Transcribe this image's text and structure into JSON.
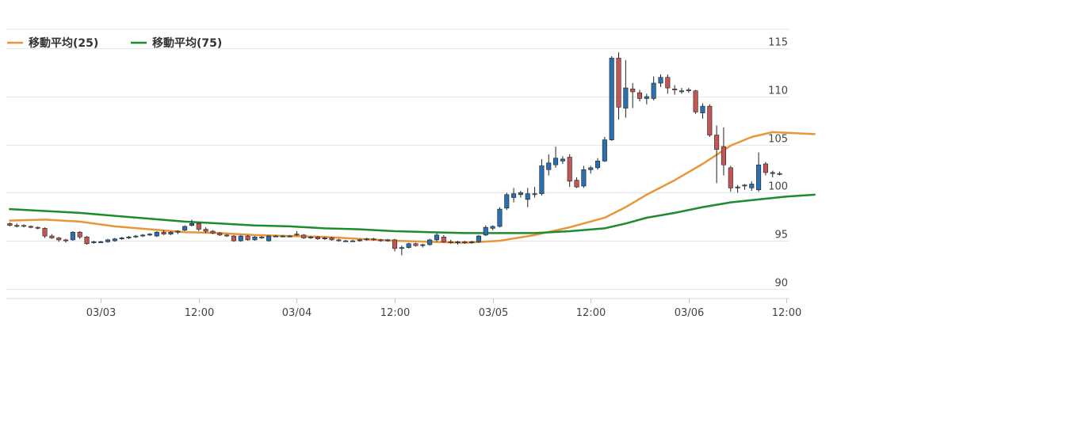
{
  "legend": [
    {
      "label": "移動平均(25)",
      "color": "#e8963a"
    },
    {
      "label": "移動平均(75)",
      "color": "#1e8c2e"
    }
  ],
  "chart_data": {
    "type": "candlestick",
    "title": "",
    "xlabel": "",
    "ylabel": "",
    "ylim": [
      89,
      117
    ],
    "y_ticks": [
      90,
      95,
      100,
      105,
      110,
      115
    ],
    "y_axis_side": "right",
    "grid": {
      "horizontal": true,
      "vertical": false
    },
    "legend_position": "top-left",
    "colors": {
      "up": "#2a6fb0",
      "down": "#c45656",
      "wick": "#222222",
      "grid": "#e6e6e6"
    },
    "x_ticks": [
      {
        "label": "03/03",
        "index": 13
      },
      {
        "label": "12:00",
        "index": 27
      },
      {
        "label": "03/04",
        "index": 41
      },
      {
        "label": "12:00",
        "index": 55
      },
      {
        "label": "03/05",
        "index": 69
      },
      {
        "label": "12:00",
        "index": 83
      },
      {
        "label": "03/06",
        "index": 97
      },
      {
        "label": "12:00",
        "index": 111
      }
    ],
    "candles": [
      [
        96.8,
        96.9,
        96.5,
        96.6
      ],
      [
        96.6,
        96.8,
        96.4,
        96.6
      ],
      [
        96.6,
        96.7,
        96.4,
        96.5
      ],
      [
        96.5,
        96.6,
        96.3,
        96.4
      ],
      [
        96.4,
        96.5,
        96.2,
        96.3
      ],
      [
        96.3,
        96.4,
        95.3,
        95.5
      ],
      [
        95.5,
        95.7,
        95.2,
        95.3
      ],
      [
        95.3,
        95.4,
        94.9,
        95.1
      ],
      [
        95.1,
        95.2,
        94.8,
        95.0
      ],
      [
        95.1,
        96.0,
        95.0,
        95.9
      ],
      [
        95.9,
        96.0,
        95.2,
        95.4
      ],
      [
        95.4,
        95.5,
        94.6,
        94.7
      ],
      [
        94.8,
        95.0,
        94.7,
        94.9
      ],
      [
        94.9,
        95.0,
        94.8,
        94.9
      ],
      [
        94.9,
        95.2,
        94.8,
        95.1
      ],
      [
        95.0,
        95.3,
        94.9,
        95.2
      ],
      [
        95.2,
        95.4,
        95.1,
        95.3
      ],
      [
        95.3,
        95.5,
        95.2,
        95.4
      ],
      [
        95.4,
        95.6,
        95.3,
        95.5
      ],
      [
        95.5,
        95.7,
        95.4,
        95.6
      ],
      [
        95.6,
        95.8,
        95.5,
        95.7
      ],
      [
        95.5,
        96.0,
        95.4,
        95.9
      ],
      [
        95.9,
        96.1,
        95.6,
        95.7
      ],
      [
        95.7,
        96.0,
        95.6,
        95.9
      ],
      [
        95.9,
        96.1,
        95.7,
        96.0
      ],
      [
        96.1,
        96.6,
        96.0,
        96.5
      ],
      [
        96.6,
        97.2,
        96.5,
        96.8
      ],
      [
        96.8,
        96.9,
        96.0,
        96.2
      ],
      [
        96.2,
        96.4,
        95.8,
        96.0
      ],
      [
        96.0,
        96.1,
        95.7,
        95.8
      ],
      [
        95.8,
        95.9,
        95.5,
        95.6
      ],
      [
        95.6,
        95.7,
        95.4,
        95.5
      ],
      [
        95.5,
        95.6,
        94.9,
        95.0
      ],
      [
        95.0,
        95.6,
        94.9,
        95.5
      ],
      [
        95.5,
        95.6,
        95.0,
        95.1
      ],
      [
        95.1,
        95.5,
        95.0,
        95.4
      ],
      [
        95.4,
        95.5,
        95.2,
        95.3
      ],
      [
        95.0,
        95.6,
        94.9,
        95.5
      ],
      [
        95.5,
        95.6,
        95.4,
        95.5
      ],
      [
        95.5,
        95.6,
        95.4,
        95.5
      ],
      [
        95.5,
        95.6,
        95.4,
        95.5
      ],
      [
        95.7,
        96.0,
        95.5,
        95.6
      ],
      [
        95.6,
        95.7,
        95.2,
        95.3
      ],
      [
        95.3,
        95.5,
        95.2,
        95.4
      ],
      [
        95.4,
        95.5,
        95.1,
        95.2
      ],
      [
        95.2,
        95.4,
        95.1,
        95.3
      ],
      [
        95.3,
        95.4,
        95.0,
        95.1
      ],
      [
        95.1,
        95.2,
        94.9,
        95.0
      ],
      [
        95.0,
        95.1,
        94.9,
        95.0
      ],
      [
        95.0,
        95.1,
        94.9,
        95.0
      ],
      [
        95.0,
        95.2,
        94.9,
        95.1
      ],
      [
        95.1,
        95.3,
        95.0,
        95.2
      ],
      [
        95.2,
        95.3,
        95.0,
        95.1
      ],
      [
        95.1,
        95.2,
        94.9,
        95.0
      ],
      [
        95.0,
        95.2,
        94.9,
        95.1
      ],
      [
        95.1,
        95.2,
        93.9,
        94.2
      ],
      [
        94.2,
        94.5,
        93.5,
        94.3
      ],
      [
        94.3,
        94.8,
        94.2,
        94.7
      ],
      [
        94.7,
        94.8,
        94.4,
        94.5
      ],
      [
        94.5,
        94.7,
        94.3,
        94.6
      ],
      [
        94.6,
        95.2,
        94.5,
        95.1
      ],
      [
        95.1,
        95.8,
        94.9,
        95.6
      ],
      [
        95.4,
        95.6,
        94.8,
        94.9
      ],
      [
        94.9,
        95.1,
        94.7,
        94.8
      ],
      [
        94.8,
        95.0,
        94.6,
        94.9
      ],
      [
        94.9,
        95.0,
        94.7,
        94.8
      ],
      [
        94.8,
        95.0,
        94.7,
        94.9
      ],
      [
        94.9,
        95.6,
        94.8,
        95.5
      ],
      [
        95.6,
        96.6,
        95.5,
        96.4
      ],
      [
        96.3,
        96.6,
        96.1,
        96.5
      ],
      [
        96.5,
        98.5,
        96.4,
        98.3
      ],
      [
        98.4,
        100.0,
        98.2,
        99.8
      ],
      [
        99.5,
        100.5,
        99.0,
        99.9
      ],
      [
        99.8,
        100.2,
        99.5,
        100.0
      ],
      [
        99.3,
        100.5,
        98.5,
        99.9
      ],
      [
        99.8,
        100.6,
        99.5,
        99.9
      ],
      [
        99.9,
        103.5,
        99.7,
        102.8
      ],
      [
        102.4,
        104.0,
        101.8,
        103.1
      ],
      [
        102.9,
        104.8,
        102.6,
        103.6
      ],
      [
        103.3,
        103.8,
        103.0,
        103.5
      ],
      [
        103.7,
        104.0,
        100.6,
        101.2
      ],
      [
        101.3,
        101.6,
        100.5,
        100.6
      ],
      [
        100.7,
        102.8,
        100.5,
        102.4
      ],
      [
        102.4,
        102.8,
        102.0,
        102.6
      ],
      [
        102.6,
        103.6,
        102.4,
        103.3
      ],
      [
        103.3,
        105.8,
        103.2,
        105.5
      ],
      [
        105.5,
        114.2,
        105.4,
        114.0
      ],
      [
        114.0,
        114.6,
        107.6,
        108.9
      ],
      [
        108.8,
        113.8,
        107.8,
        110.9
      ],
      [
        110.8,
        111.4,
        108.8,
        110.5
      ],
      [
        110.4,
        110.7,
        109.5,
        109.8
      ],
      [
        109.8,
        110.3,
        109.2,
        110.0
      ],
      [
        109.8,
        112.1,
        109.6,
        111.4
      ],
      [
        111.4,
        112.3,
        111.0,
        112.0
      ],
      [
        112.0,
        112.3,
        110.3,
        110.9
      ],
      [
        110.8,
        111.2,
        110.2,
        110.7
      ],
      [
        110.6,
        110.9,
        110.3,
        110.6
      ],
      [
        110.7,
        110.9,
        110.4,
        110.6
      ],
      [
        110.6,
        110.7,
        108.2,
        108.4
      ],
      [
        108.3,
        109.3,
        107.7,
        109.0
      ],
      [
        109.0,
        109.2,
        105.8,
        106.0
      ],
      [
        106.0,
        107.0,
        101.0,
        104.5
      ],
      [
        104.8,
        106.8,
        101.8,
        102.9
      ],
      [
        102.6,
        102.8,
        100.1,
        100.5
      ],
      [
        100.5,
        100.8,
        100.0,
        100.6
      ],
      [
        100.7,
        100.9,
        100.3,
        100.8
      ],
      [
        100.5,
        101.2,
        100.2,
        100.9
      ],
      [
        100.3,
        104.2,
        100.1,
        102.9
      ],
      [
        103.0,
        103.2,
        101.8,
        102.1
      ],
      [
        102.0,
        102.3,
        101.6,
        102.1
      ],
      [
        102.0,
        102.2,
        101.8,
        102.0
      ]
    ],
    "series": [
      {
        "name": "移動平均(25)",
        "color": "#e8963a",
        "points": [
          [
            0,
            97.1
          ],
          [
            5,
            97.2
          ],
          [
            10,
            97.0
          ],
          [
            15,
            96.5
          ],
          [
            20,
            96.2
          ],
          [
            25,
            95.9
          ],
          [
            30,
            95.8
          ],
          [
            35,
            95.6
          ],
          [
            40,
            95.5
          ],
          [
            45,
            95.4
          ],
          [
            50,
            95.2
          ],
          [
            55,
            95.0
          ],
          [
            60,
            94.9
          ],
          [
            65,
            94.8
          ],
          [
            70,
            95.0
          ],
          [
            75,
            95.6
          ],
          [
            80,
            96.4
          ],
          [
            85,
            97.4
          ],
          [
            88,
            98.5
          ],
          [
            91,
            99.8
          ],
          [
            95,
            101.3
          ],
          [
            99,
            103.0
          ],
          [
            103,
            104.9
          ],
          [
            106,
            105.8
          ],
          [
            109,
            106.3
          ],
          [
            112,
            106.2
          ],
          [
            115,
            106.1
          ]
        ]
      },
      {
        "name": "移動平均(75)",
        "color": "#1e8c2e",
        "points": [
          [
            0,
            98.3
          ],
          [
            5,
            98.1
          ],
          [
            10,
            97.9
          ],
          [
            15,
            97.6
          ],
          [
            20,
            97.3
          ],
          [
            25,
            97.0
          ],
          [
            30,
            96.8
          ],
          [
            35,
            96.6
          ],
          [
            40,
            96.5
          ],
          [
            45,
            96.3
          ],
          [
            50,
            96.2
          ],
          [
            55,
            96.0
          ],
          [
            60,
            95.9
          ],
          [
            65,
            95.8
          ],
          [
            70,
            95.8
          ],
          [
            75,
            95.8
          ],
          [
            80,
            96.0
          ],
          [
            85,
            96.3
          ],
          [
            88,
            96.8
          ],
          [
            91,
            97.4
          ],
          [
            95,
            97.9
          ],
          [
            99,
            98.5
          ],
          [
            103,
            99.0
          ],
          [
            107,
            99.3
          ],
          [
            111,
            99.6
          ],
          [
            115,
            99.8
          ]
        ]
      }
    ]
  }
}
